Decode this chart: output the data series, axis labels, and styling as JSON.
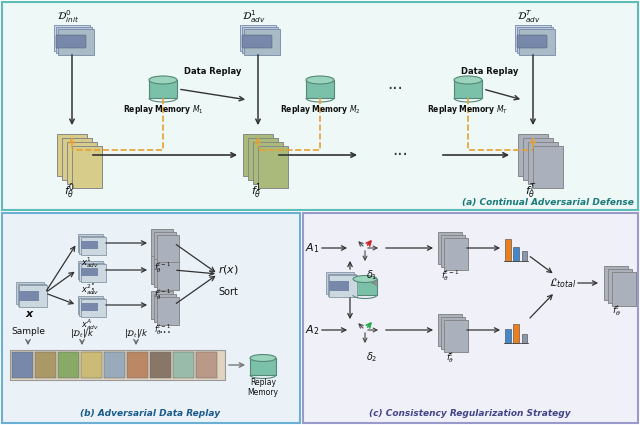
{
  "bg_color": "#ffffff",
  "top_panel_bg": "#edf8f7",
  "bottom_left_bg": "#eaf2f8",
  "bottom_right_bg": "#f0f0f8",
  "border_top": "#5bbcb8",
  "border_bl": "#6ab0d4",
  "border_br": "#9999cc",
  "panel_a_label": "(a) Continual Adversarial Defense",
  "panel_b_label": "(b) Adversarial Data Replay",
  "panel_c_label": "(c) Consistency Regularization Strategy",
  "colors": {
    "model_beige": "#d8cc8a",
    "model_green": "#aaba7a",
    "model_gray": "#aab0bc",
    "cyl_green": "#7bc0a8",
    "cyl_top": "#9ad4bc",
    "orange_dash": "#e8a030",
    "bar_orange": "#e88020",
    "bar_blue": "#4488cc",
    "bar_gray": "#8898aa",
    "text_teal": "#1a7a78",
    "text_blue": "#1a5a8a",
    "text_purple": "#444488"
  }
}
